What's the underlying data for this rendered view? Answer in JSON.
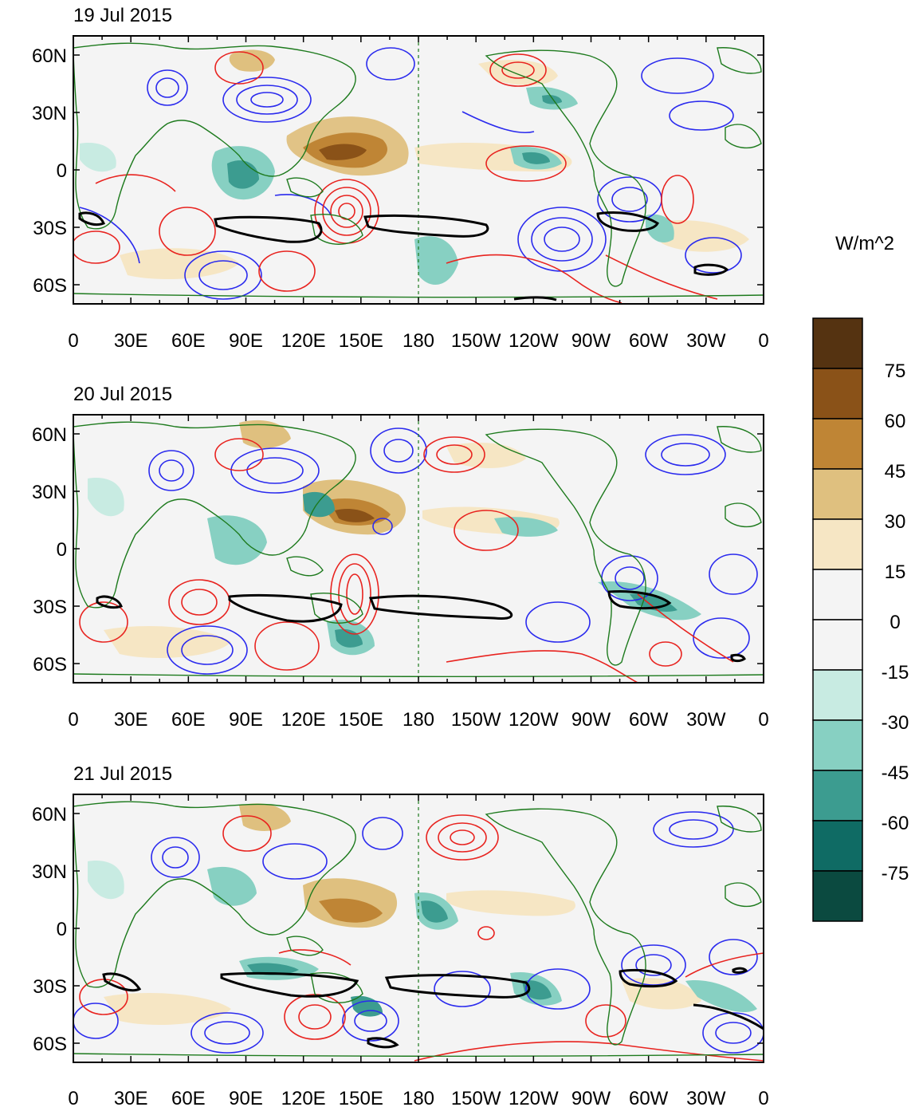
{
  "figure": {
    "units_label": "W/m^2",
    "lon_ticks": [
      "0",
      "30E",
      "60E",
      "90E",
      "120E",
      "150E",
      "180",
      "150W",
      "120W",
      "90W",
      "60W",
      "30W",
      "0"
    ],
    "lat_ticks": [
      "60N",
      "30N",
      "0",
      "30S",
      "60S"
    ],
    "lat_tick_values": [
      60,
      30,
      0,
      -30,
      -60
    ],
    "lat_range": [
      -70,
      70
    ],
    "lon_range": [
      0,
      360
    ]
  },
  "panels": [
    {
      "title": "19 Jul 2015"
    },
    {
      "title": "20 Jul 2015"
    },
    {
      "title": "21 Jul 2015"
    }
  ],
  "colorbar": {
    "labels": [
      "75",
      "60",
      "45",
      "30",
      "15",
      "0",
      "-15",
      "-30",
      "-45",
      "-60",
      "-75"
    ],
    "colors": [
      "#553311",
      "#8a5218",
      "#bf8535",
      "#dfc07f",
      "#f6e6c4",
      "#f4f4f4",
      "#f4f4f4",
      "#c8ebe2",
      "#87d0c2",
      "#3c9c90",
      "#0f6b64",
      "#0b4a40"
    ]
  },
  "colors": {
    "positive_contour": "#e8231f",
    "negative_contour": "#2a2aee",
    "coastline": "#1d7a1d",
    "outline": "#000000",
    "dateline": "#1d7a1d"
  }
}
